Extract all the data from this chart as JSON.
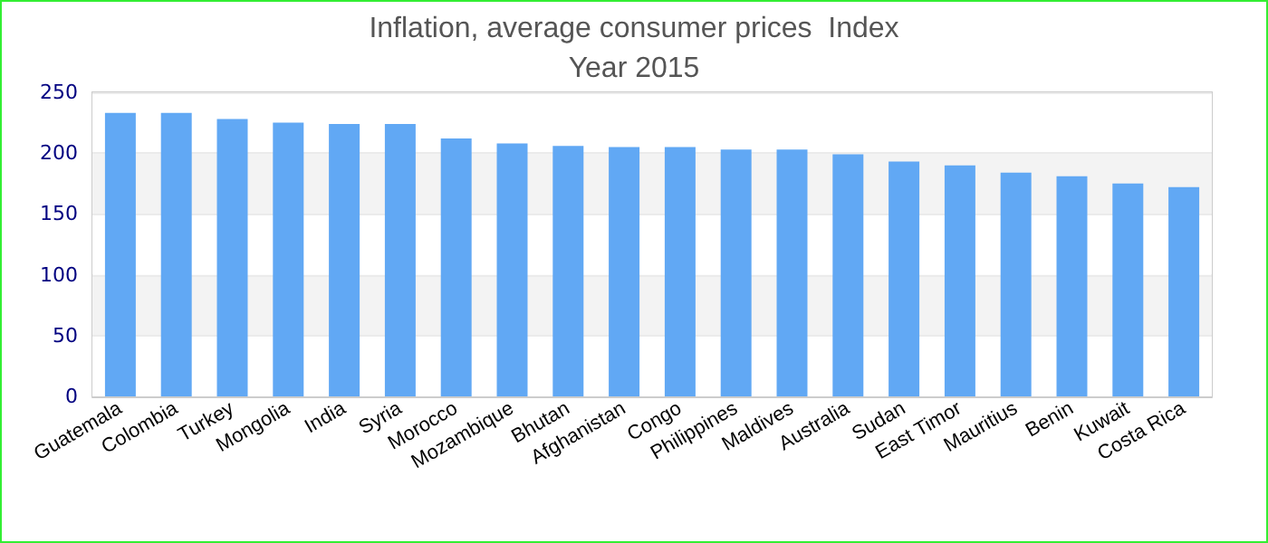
{
  "chart_data": {
    "type": "bar",
    "title": "Inflation, average consumer prices  Index",
    "subtitle": "Year 2015",
    "categories": [
      "Guatemala",
      "Colombia",
      "Turkey",
      "Mongolia",
      "India",
      "Syria",
      "Morocco",
      "Mozambique",
      "Bhutan",
      "Afghanistan",
      "Congo",
      "Philippines",
      "Maldives",
      "Australia",
      "Sudan",
      "East Timor",
      "Mauritius",
      "Benin",
      "Kuwait",
      "Costa Rica"
    ],
    "values": [
      233,
      233,
      228,
      225,
      224,
      224,
      212,
      208,
      206,
      205,
      205,
      203,
      203,
      199,
      193,
      190,
      184,
      181,
      175,
      172
    ],
    "color": "#61a8f4",
    "ylim": [
      0,
      250
    ],
    "yticks": [
      0,
      50,
      100,
      150,
      200,
      250
    ],
    "grid": "y"
  }
}
